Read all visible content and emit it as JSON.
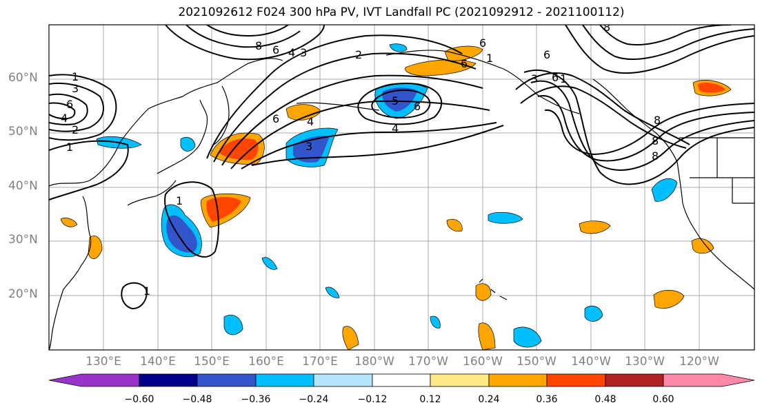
{
  "title": "2021092612 F024 300 hPa PV, IVT Landfall PC (2021092912 - 2021100112)",
  "lat_labels": [
    "60°N",
    "50°N",
    "40°N",
    "30°N",
    "20°N"
  ],
  "lon_labels": [
    "130°E",
    "140°E",
    "150°E",
    "160°E",
    "170°E",
    "180°W",
    "170°W",
    "160°W",
    "150°W",
    "140°W",
    "130°W",
    "120°W"
  ],
  "colorbar": {
    "colors": [
      "#9933cc",
      "#00008b",
      "#3355cc",
      "#00bfff",
      "#b3e5fc",
      "#ffffff",
      "#ffe985",
      "#ffa500",
      "#ff4500",
      "#b22222",
      "#ff88aa"
    ],
    "tick_labels": [
      "−0.60",
      "−0.48",
      "−0.36",
      "−0.24",
      "−0.12",
      "0.12",
      "0.24",
      "0.36",
      "0.48",
      "0.60"
    ]
  },
  "contour_labels": [
    "1",
    "3",
    "6",
    "4",
    "2",
    "1",
    "8",
    "6",
    "4",
    "3",
    "2",
    "6",
    "4",
    "3",
    "5",
    "6",
    "4",
    "8",
    "6",
    "6",
    "1",
    "6",
    "3",
    "6",
    "1",
    "8",
    "8",
    "8",
    "1",
    "1"
  ]
}
